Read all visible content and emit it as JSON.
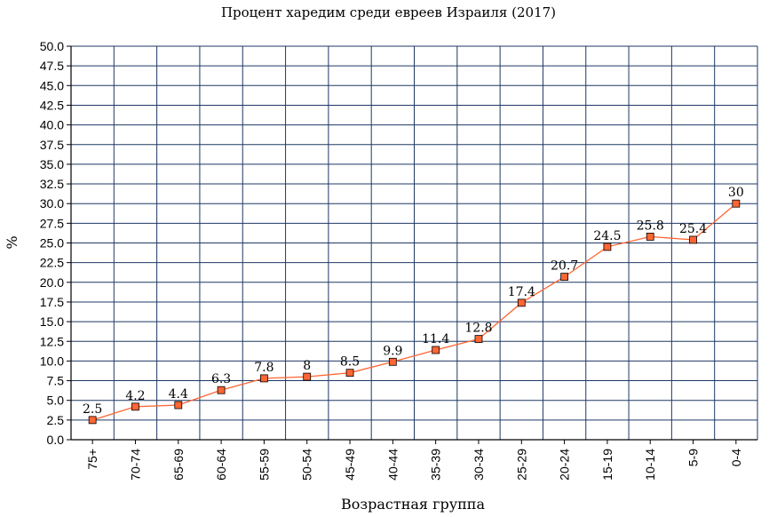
{
  "chart_data": {
    "type": "line",
    "title": "Процент харедим среди евреев Израиля (2017)",
    "xlabel": "Возрастная группа",
    "ylabel": "%",
    "categories": [
      "75+",
      "70-74",
      "65-69",
      "60-64",
      "55-59",
      "50-54",
      "45-49",
      "40-44",
      "35-39",
      "30-34",
      "25-29",
      "20-24",
      "15-19",
      "10-14",
      "5-9",
      "0-4"
    ],
    "values": [
      2.5,
      4.2,
      4.4,
      6.3,
      7.8,
      8,
      8.5,
      9.9,
      11.4,
      12.8,
      17.4,
      20.7,
      24.5,
      25.8,
      25.4,
      30
    ],
    "value_labels": [
      "2.5",
      "4.2",
      "4.4",
      "6.3",
      "7.8",
      "8",
      "8.5",
      "9.9",
      "11.4",
      "12.8",
      "17.4",
      "20.7",
      "24.5",
      "25.8",
      "25.4",
      "30"
    ],
    "y_ticks": [
      "0.0",
      "2.5",
      "5.0",
      "7.5",
      "10.0",
      "12.5",
      "15.0",
      "17.5",
      "20.0",
      "22.5",
      "25.0",
      "27.5",
      "30.0",
      "32.5",
      "35.0",
      "37.5",
      "40.0",
      "42.5",
      "45.0",
      "47.5",
      "50.0"
    ],
    "ylim": [
      0,
      50
    ],
    "grid": true,
    "colors": {
      "line": "#ff6633",
      "marker_fill": "#ff6633",
      "marker_stroke": "#000000",
      "grid": "#1f3864",
      "axis": "#000000"
    }
  }
}
